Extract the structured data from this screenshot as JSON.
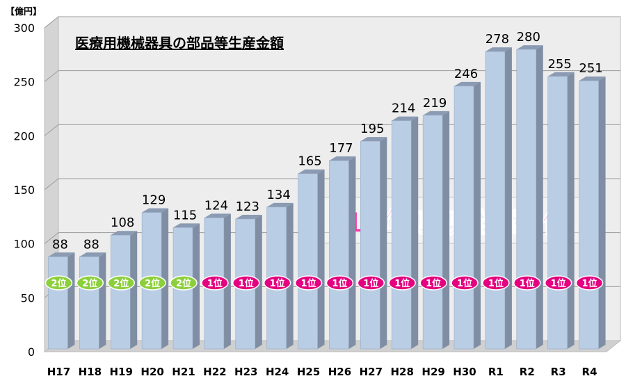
{
  "chart_data": {
    "type": "bar",
    "title": "医療用機械器具の部品等生産金額",
    "unit_label": "【億円】",
    "annotation": "13年連続全国1位",
    "ylim": [
      0,
      300
    ],
    "y_ticks": [
      "0",
      "50",
      "100",
      "150",
      "200",
      "250",
      "300"
    ],
    "grid": true,
    "categories": [
      "H17",
      "H18",
      "H19",
      "H20",
      "H21",
      "H22",
      "H23",
      "H24",
      "H25",
      "H26",
      "H27",
      "H28",
      "H29",
      "H30",
      "R1",
      "R2",
      "R3",
      "R4"
    ],
    "values": [
      88,
      88,
      108,
      129,
      115,
      124,
      123,
      134,
      165,
      177,
      195,
      214,
      219,
      246,
      278,
      280,
      255,
      251
    ],
    "ranks": [
      "2位",
      "2位",
      "2位",
      "2位",
      "2位",
      "1位",
      "1位",
      "1位",
      "1位",
      "1位",
      "1位",
      "1位",
      "1位",
      "1位",
      "1位",
      "1位",
      "1位",
      "1位"
    ],
    "rank_colors": {
      "2位": "#8ccf3c",
      "1位": "#e4007f"
    },
    "bar_color": "#b9cde5",
    "annotation_color": "#ff33aa"
  }
}
